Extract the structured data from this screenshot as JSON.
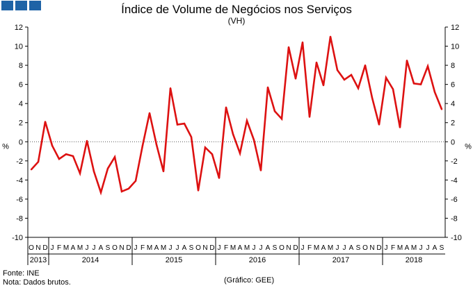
{
  "header": {
    "title": "Índice de Volume de Negócios nos Serviços",
    "subtitle": "(VH)"
  },
  "footer": {
    "source": "Fonte: INE",
    "note": "Nota: Dados brutos.",
    "credit": "(Gráfico: GEE)"
  },
  "colors": {
    "series": "#dd1111",
    "logo": "#1e63a6"
  },
  "chart_data": {
    "type": "line",
    "title": "Índice de Volume de Negócios nos Serviços",
    "subtitle": "(VH)",
    "ylabel": "%",
    "ylabel_right": "%",
    "ylim": [
      -10,
      12
    ],
    "yticks": [
      -10,
      -8,
      -6,
      -4,
      -2,
      0,
      2,
      4,
      6,
      8,
      10,
      12
    ],
    "grid": false,
    "month_labels": [
      "O",
      "N",
      "D",
      "J",
      "F",
      "M",
      "A",
      "M",
      "J",
      "J",
      "A",
      "S",
      "O",
      "N",
      "D",
      "J",
      "F",
      "M",
      "A",
      "M",
      "J",
      "J",
      "A",
      "S",
      "O",
      "N",
      "D",
      "J",
      "F",
      "M",
      "A",
      "M",
      "J",
      "J",
      "A",
      "S",
      "O",
      "N",
      "D",
      "J",
      "F",
      "M",
      "A",
      "M",
      "J",
      "J",
      "A",
      "S",
      "O",
      "N",
      "D",
      "J",
      "F",
      "M",
      "A",
      "M",
      "J",
      "J",
      "A",
      "S"
    ],
    "year_groups": [
      {
        "label": "2013",
        "start": 0,
        "count": 3
      },
      {
        "label": "2014",
        "start": 3,
        "count": 12
      },
      {
        "label": "2015",
        "start": 15,
        "count": 12
      },
      {
        "label": "2016",
        "start": 27,
        "count": 12
      },
      {
        "label": "2017",
        "start": 39,
        "count": 12
      },
      {
        "label": "2018",
        "start": 51,
        "count": 9
      }
    ],
    "series": [
      {
        "name": "VH",
        "values": [
          -2.9,
          -2.1,
          2.1,
          -0.4,
          -1.8,
          -1.3,
          -1.5,
          -3.3,
          0.1,
          -3.1,
          -5.3,
          -2.8,
          -1.6,
          -5.2,
          -4.9,
          -4.1,
          -0.4,
          3.0,
          -0.3,
          -3.1,
          5.6,
          1.8,
          1.9,
          0.5,
          -5.1,
          -0.6,
          -1.3,
          -3.8,
          3.6,
          0.8,
          -1.2,
          2.2,
          0.2,
          -3.0,
          5.7,
          3.2,
          2.4,
          9.9,
          6.6,
          10.4,
          2.6,
          8.3,
          5.9,
          11.0,
          7.5,
          6.5,
          7.0,
          5.6,
          8.0,
          4.6,
          1.8,
          6.7,
          5.5,
          1.5,
          8.5,
          6.1,
          6.0,
          7.9,
          5.2,
          3.4
        ]
      }
    ]
  }
}
